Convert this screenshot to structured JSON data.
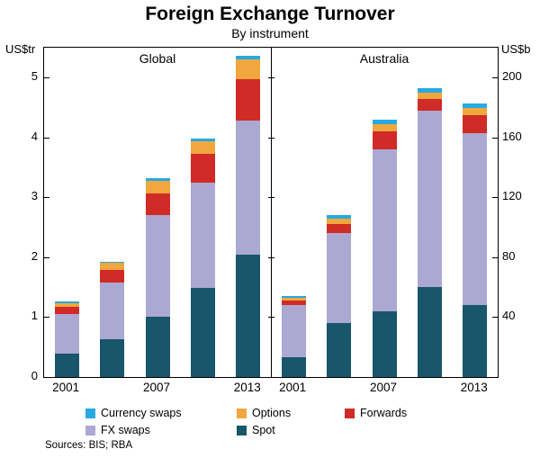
{
  "title": "Foreign Exchange Turnover",
  "subtitle": "By instrument",
  "left_axis": {
    "unit": "US$tr",
    "ticks": [
      0,
      1,
      2,
      3,
      4,
      5
    ],
    "max": 5.5
  },
  "right_axis": {
    "unit": "US$b",
    "ticks": [
      40,
      80,
      120,
      160,
      200
    ],
    "scale_per_left_unit": 40
  },
  "sources": "Sources: BIS; RBA",
  "chart_data": {
    "type": "bar",
    "stacked": true,
    "panels": [
      {
        "label": "Global",
        "unit": "US$tr",
        "x_tick_labels": [
          "2001",
          "",
          "2007",
          "",
          "2013"
        ],
        "x_years": [
          2001,
          2004,
          2007,
          2010,
          2013
        ],
        "series": [
          {
            "name": "Spot",
            "color": "#17566b",
            "values": [
              0.39,
              0.63,
              1.0,
              1.49,
              2.05
            ]
          },
          {
            "name": "FX swaps",
            "color": "#aba9d2",
            "values": [
              0.66,
              0.95,
              1.71,
              1.76,
              2.24
            ]
          },
          {
            "name": "Forwards",
            "color": "#d02b27",
            "values": [
              0.13,
              0.21,
              0.36,
              0.48,
              0.68
            ]
          },
          {
            "name": "Options",
            "color": "#f0a73e",
            "values": [
              0.06,
              0.12,
              0.21,
              0.21,
              0.34
            ]
          },
          {
            "name": "Currency swaps",
            "color": "#27a9e1",
            "values": [
              0.02,
              0.02,
              0.04,
              0.04,
              0.05
            ]
          }
        ]
      },
      {
        "label": "Australia",
        "unit": "US$b",
        "x_tick_labels": [
          "2001",
          "",
          "2007",
          "",
          "2013"
        ],
        "x_years": [
          2001,
          2004,
          2007,
          2010,
          2013
        ],
        "series": [
          {
            "name": "Spot",
            "color": "#17566b",
            "values": [
              13,
              36,
              44,
              60,
              48
            ]
          },
          {
            "name": "FX swaps",
            "color": "#aba9d2",
            "values": [
              35,
              60,
              108,
              118,
              115
            ]
          },
          {
            "name": "Forwards",
            "color": "#d02b27",
            "values": [
              3,
              6,
              12,
              8,
              12
            ]
          },
          {
            "name": "Options",
            "color": "#f0a73e",
            "values": [
              2,
              4,
              5,
              4,
              5
            ]
          },
          {
            "name": "Currency swaps",
            "color": "#27a9e1",
            "values": [
              1,
              2,
              3,
              3,
              3
            ]
          }
        ]
      }
    ]
  },
  "legend": {
    "items": [
      {
        "label": "Currency swaps",
        "color": "#27a9e1"
      },
      {
        "label": "Options",
        "color": "#f0a73e"
      },
      {
        "label": "Forwards",
        "color": "#d02b27"
      },
      {
        "label": "FX swaps",
        "color": "#aba9d2"
      },
      {
        "label": "Spot",
        "color": "#17566b"
      }
    ]
  }
}
